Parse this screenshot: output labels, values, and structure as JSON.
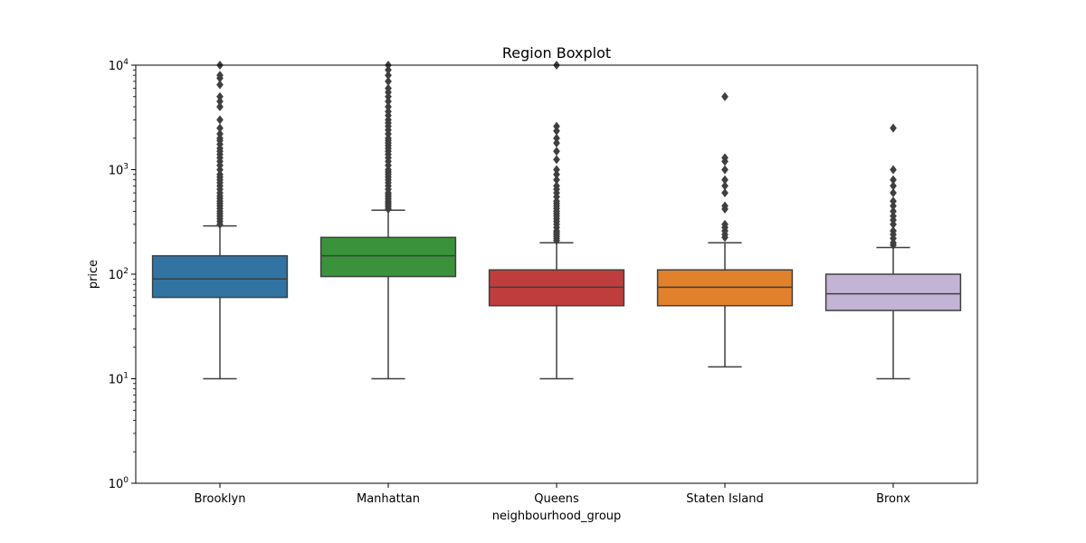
{
  "chart_data": {
    "type": "boxplot",
    "title": "Region Boxplot",
    "xlabel": "neighbourhood_group",
    "ylabel": "price",
    "yscale": "log",
    "ylim": [
      1,
      10000
    ],
    "yticks": [
      {
        "value": 1,
        "base": "10",
        "exp": "0"
      },
      {
        "value": 10,
        "base": "10",
        "exp": "1"
      },
      {
        "value": 100,
        "base": "10",
        "exp": "2"
      },
      {
        "value": 1000,
        "base": "10",
        "exp": "3"
      },
      {
        "value": 10000,
        "base": "10",
        "exp": "4"
      }
    ],
    "grid": false,
    "legend": "none",
    "categories": [
      "Brooklyn",
      "Manhattan",
      "Queens",
      "Staten Island",
      "Bronx"
    ],
    "boxes": [
      {
        "category": "Brooklyn",
        "color": "#3274a1",
        "whisker_low": 10,
        "q1": 60,
        "median": 90,
        "q3": 150,
        "whisker_high": 290,
        "outliers": [
          300,
          320,
          340,
          360,
          380,
          400,
          425,
          450,
          475,
          500,
          530,
          560,
          600,
          650,
          700,
          750,
          800,
          850,
          900,
          1000,
          1100,
          1200,
          1300,
          1400,
          1500,
          1600,
          1750,
          1900,
          2000,
          2200,
          2500,
          3000,
          4000,
          4500,
          5000,
          6500,
          7500,
          8000,
          10000
        ]
      },
      {
        "category": "Manhattan",
        "color": "#3a923a",
        "whisker_low": 10,
        "q1": 95,
        "median": 150,
        "q3": 225,
        "whisker_high": 410,
        "outliers": [
          420,
          440,
          460,
          480,
          500,
          525,
          550,
          575,
          600,
          650,
          700,
          750,
          800,
          850,
          900,
          950,
          1000,
          1100,
          1200,
          1300,
          1400,
          1500,
          1600,
          1700,
          1800,
          1900,
          2000,
          2200,
          2400,
          2600,
          2800,
          3000,
          3300,
          3600,
          4000,
          4500,
          5000,
          5500,
          6000,
          7000,
          8000,
          9000,
          10000
        ]
      },
      {
        "category": "Queens",
        "color": "#c03d3e",
        "whisker_low": 10,
        "q1": 50,
        "median": 75,
        "q3": 110,
        "whisker_high": 200,
        "outliers": [
          210,
          220,
          230,
          240,
          250,
          260,
          280,
          300,
          320,
          340,
          360,
          380,
          400,
          425,
          450,
          475,
          500,
          550,
          600,
          650,
          700,
          800,
          900,
          1000,
          1250,
          1500,
          1800,
          2000,
          2350,
          2600,
          10000
        ]
      },
      {
        "category": "Staten Island",
        "color": "#e1812c",
        "whisker_low": 13,
        "q1": 50,
        "median": 75,
        "q3": 110,
        "whisker_high": 200,
        "outliers": [
          225,
          240,
          260,
          280,
          300,
          420,
          450,
          600,
          700,
          800,
          1000,
          1200,
          1300,
          5000
        ]
      },
      {
        "category": "Bronx",
        "color": "#c3b3d4",
        "whisker_low": 10,
        "q1": 45,
        "median": 65,
        "q3": 100,
        "whisker_high": 180,
        "outliers": [
          190,
          200,
          220,
          240,
          260,
          300,
          330,
          360,
          400,
          450,
          500,
          600,
          700,
          800,
          1000,
          2500
        ]
      }
    ]
  }
}
